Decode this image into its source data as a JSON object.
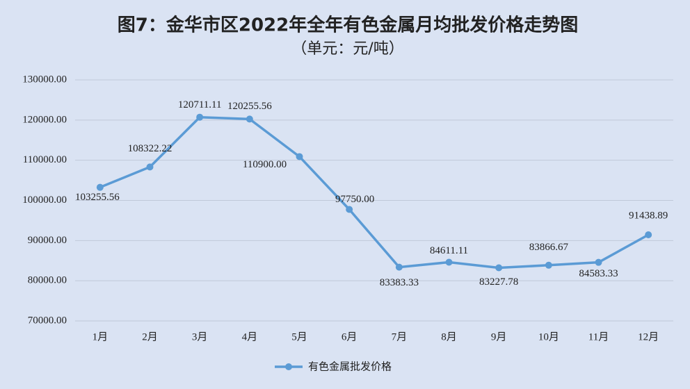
{
  "chart_data": {
    "type": "line",
    "title": "图7：金华市区2022年全年有色金属月均批发价格走势图",
    "subtitle": "（单元：元/吨）",
    "categories": [
      "1月",
      "2月",
      "3月",
      "4月",
      "5月",
      "6月",
      "7月",
      "8月",
      "9月",
      "10月",
      "11月",
      "12月"
    ],
    "series": [
      {
        "name": "有色金属批发价格",
        "color": "#5b9bd5",
        "values": [
          103255.56,
          108322.22,
          120711.11,
          120255.56,
          110900,
          97750,
          83383.33,
          84611.11,
          83227.78,
          83866.67,
          84583.33,
          91438.89
        ],
        "value_labels": [
          "103255.56",
          "108322.22",
          "120711.11",
          "120255.56",
          "110900.00",
          "97750.00",
          "83383.33",
          "84611.11",
          "83227.78",
          "83866.67",
          "84583.33",
          "91438.89"
        ]
      }
    ],
    "ylim": [
      70000,
      130000
    ],
    "yticks": [
      {
        "value": 70000,
        "label": "70000.00"
      },
      {
        "value": 80000,
        "label": "80000.00"
      },
      {
        "value": 90000,
        "label": "90000.00"
      },
      {
        "value": 100000,
        "label": "100000.00"
      },
      {
        "value": 110000,
        "label": "110000.00"
      },
      {
        "value": 120000,
        "label": "120000.00"
      },
      {
        "value": 130000,
        "label": "130000.00"
      }
    ],
    "grid": true,
    "legend": "bottom"
  }
}
